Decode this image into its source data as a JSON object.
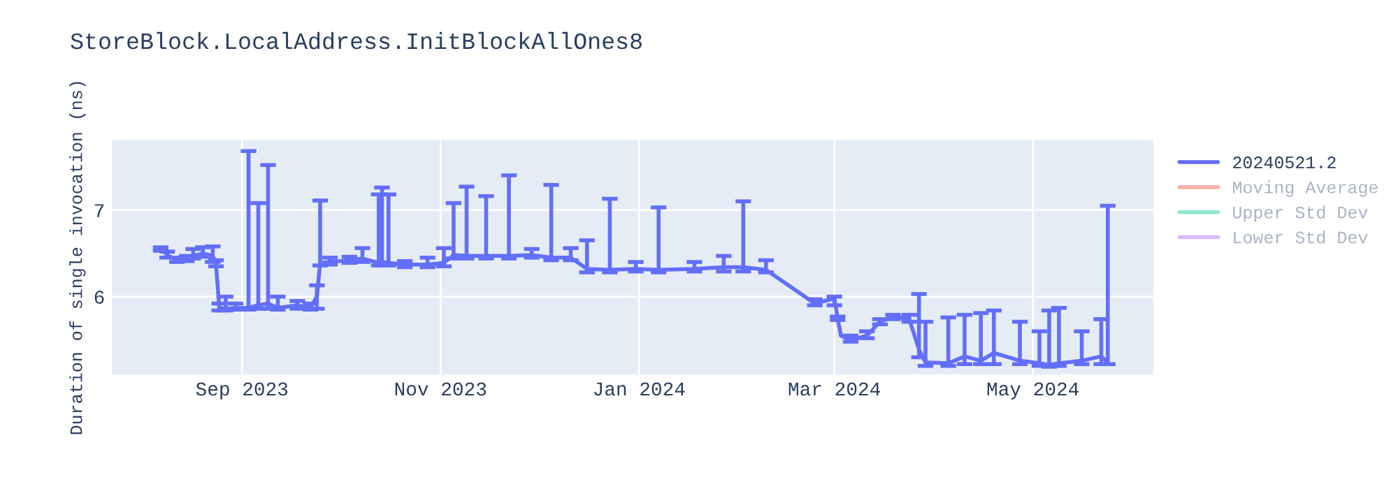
{
  "chart_data": {
    "type": "line",
    "title": "StoreBlock.LocalAddress.InitBlockAllOnes8",
    "ylabel": "Duration of single invocation (ns)",
    "x": [
      "2023-08-07",
      "2023-08-09",
      "2023-08-12",
      "2023-08-15",
      "2023-08-17",
      "2023-08-20",
      "2023-08-23",
      "2023-08-24",
      "2023-08-25",
      "2023-08-27",
      "2023-08-30",
      "2023-09-03",
      "2023-09-06",
      "2023-09-09",
      "2023-09-12",
      "2023-09-18",
      "2023-09-22",
      "2023-09-24",
      "2023-09-25",
      "2023-09-28",
      "2023-10-04",
      "2023-10-08",
      "2023-10-13",
      "2023-10-14",
      "2023-10-16",
      "2023-10-21",
      "2023-10-28",
      "2023-11-02",
      "2023-11-05",
      "2023-11-09",
      "2023-11-15",
      "2023-11-22",
      "2023-11-29",
      "2023-12-05",
      "2023-12-11",
      "2023-12-16",
      "2023-12-23",
      "2023-12-31",
      "2024-01-07",
      "2024-01-18",
      "2024-01-27",
      "2024-02-02",
      "2024-02-09",
      "2024-02-24",
      "2024-03-01",
      "2024-03-02",
      "2024-03-03",
      "2024-03-06",
      "2024-03-11",
      "2024-03-15",
      "2024-03-19",
      "2024-03-24",
      "2024-03-27",
      "2024-03-29",
      "2024-04-05",
      "2024-04-10",
      "2024-04-15",
      "2024-04-19",
      "2024-04-27",
      "2024-05-03",
      "2024-05-06",
      "2024-05-09",
      "2024-05-16",
      "2024-05-22",
      "2024-05-24"
    ],
    "series": [
      {
        "name": "20240521.2",
        "color": "#636efa",
        "values": [
          6.56,
          6.48,
          6.42,
          6.44,
          6.47,
          6.5,
          6.47,
          6.39,
          5.87,
          5.86,
          5.87,
          5.87,
          5.9,
          5.92,
          5.87,
          5.9,
          5.87,
          6.0,
          6.39,
          6.4,
          6.42,
          6.44,
          6.39,
          6.4,
          6.39,
          6.37,
          6.37,
          6.39,
          6.48,
          6.47,
          6.47,
          6.47,
          6.48,
          6.45,
          6.45,
          6.32,
          6.31,
          6.32,
          6.31,
          6.32,
          6.34,
          6.34,
          6.31,
          5.92,
          5.98,
          5.75,
          5.55,
          5.5,
          5.55,
          5.71,
          5.77,
          5.74,
          5.39,
          5.24,
          5.23,
          5.31,
          5.26,
          5.35,
          5.26,
          5.23,
          5.21,
          5.23,
          5.26,
          5.31,
          5.24
        ],
        "errors": [
          [
            6.53,
            6.57
          ],
          [
            6.45,
            6.52
          ],
          [
            6.4,
            6.45
          ],
          [
            6.41,
            6.47
          ],
          [
            6.44,
            6.55
          ],
          [
            6.46,
            6.57
          ],
          [
            6.4,
            6.58
          ],
          [
            6.35,
            6.42
          ],
          [
            5.84,
            5.92
          ],
          [
            5.84,
            6.0
          ],
          [
            5.85,
            5.92
          ],
          [
            5.85,
            7.68
          ],
          [
            5.86,
            7.08
          ],
          [
            5.86,
            7.52
          ],
          [
            5.85,
            6.0
          ],
          [
            5.86,
            5.95
          ],
          [
            5.85,
            5.92
          ],
          [
            5.86,
            6.13
          ],
          [
            6.36,
            7.11
          ],
          [
            6.37,
            6.45
          ],
          [
            6.39,
            6.46
          ],
          [
            6.4,
            6.56
          ],
          [
            6.36,
            7.18
          ],
          [
            6.36,
            7.26
          ],
          [
            6.36,
            7.18
          ],
          [
            6.34,
            6.41
          ],
          [
            6.34,
            6.45
          ],
          [
            6.35,
            6.56
          ],
          [
            6.44,
            7.08
          ],
          [
            6.44,
            7.27
          ],
          [
            6.44,
            7.16
          ],
          [
            6.44,
            7.4
          ],
          [
            6.45,
            6.55
          ],
          [
            6.42,
            7.29
          ],
          [
            6.42,
            6.56
          ],
          [
            6.28,
            6.65
          ],
          [
            6.28,
            7.13
          ],
          [
            6.29,
            6.4
          ],
          [
            6.28,
            7.03
          ],
          [
            6.29,
            6.4
          ],
          [
            6.29,
            6.47
          ],
          [
            6.29,
            7.1
          ],
          [
            6.28,
            6.42
          ],
          [
            5.9,
            5.97
          ],
          [
            5.9,
            6.0
          ],
          [
            5.73,
            5.77
          ],
          null,
          [
            5.48,
            5.55
          ],
          [
            5.52,
            5.6
          ],
          [
            5.68,
            5.74
          ],
          [
            5.74,
            5.79
          ],
          [
            5.71,
            5.79
          ],
          [
            5.3,
            6.03
          ],
          [
            5.2,
            5.71
          ],
          [
            5.2,
            5.76
          ],
          [
            5.22,
            5.79
          ],
          [
            5.22,
            5.81
          ],
          [
            5.22,
            5.84
          ],
          [
            5.22,
            5.71
          ],
          [
            5.2,
            5.6
          ],
          [
            5.19,
            5.84
          ],
          [
            5.2,
            5.87
          ],
          [
            5.22,
            5.6
          ],
          [
            5.22,
            5.74
          ],
          [
            5.22,
            7.05
          ]
        ]
      },
      {
        "name": "Moving Average",
        "color": "#ef553b",
        "values": [
          null,
          null,
          null,
          null,
          null,
          null,
          null,
          null,
          null,
          null,
          null,
          null,
          null,
          null,
          null,
          null,
          null,
          null,
          null,
          null,
          null,
          null,
          null,
          null,
          null,
          null,
          null,
          null,
          null,
          null,
          null,
          null,
          null,
          null,
          null,
          null,
          null,
          null,
          null,
          null,
          null,
          null,
          null,
          null,
          null,
          null,
          null,
          null,
          null,
          null,
          null,
          null,
          null,
          null,
          null,
          null,
          null,
          null,
          null,
          null,
          null,
          null,
          null,
          null,
          null
        ]
      },
      {
        "name": "Upper Std Dev",
        "color": "#00cc96",
        "values": [
          null,
          null,
          null,
          null,
          null,
          null,
          null,
          null,
          null,
          null,
          null,
          null,
          null,
          null,
          null,
          null,
          null,
          null,
          null,
          null,
          null,
          null,
          null,
          null,
          null,
          null,
          null,
          null,
          null,
          null,
          null,
          null,
          null,
          null,
          null,
          null,
          null,
          null,
          null,
          null,
          null,
          null,
          null,
          null,
          null,
          null,
          null,
          null,
          null,
          null,
          null,
          null,
          null,
          null,
          null,
          null,
          null,
          null,
          null,
          null,
          null,
          null,
          null,
          null,
          null
        ]
      },
      {
        "name": "Lower Std Dev",
        "color": "#ab63fa",
        "values": [
          null,
          null,
          null,
          null,
          null,
          null,
          null,
          null,
          null,
          null,
          null,
          null,
          null,
          null,
          null,
          null,
          null,
          null,
          null,
          null,
          null,
          null,
          null,
          null,
          null,
          null,
          null,
          null,
          null,
          null,
          null,
          null,
          null,
          null,
          null,
          null,
          null,
          null,
          null,
          null,
          null,
          null,
          null,
          null,
          null,
          null,
          null,
          null,
          null,
          null,
          null,
          null,
          null,
          null,
          null,
          null,
          null,
          null,
          null,
          null,
          null,
          null,
          null,
          null,
          null
        ]
      }
    ],
    "xlim": [
      "2023-07-23",
      "2024-06-07"
    ],
    "xticks": [
      {
        "value": "2023-09-01",
        "label": "Sep 2023"
      },
      {
        "value": "2023-11-01",
        "label": "Nov 2023"
      },
      {
        "value": "2024-01-01",
        "label": "Jan 2024"
      },
      {
        "value": "2024-03-01",
        "label": "Mar 2024"
      },
      {
        "value": "2024-05-01",
        "label": "May 2024"
      }
    ],
    "ylim": [
      5.1,
      7.81
    ],
    "yticks": [
      6,
      7
    ],
    "grid": true,
    "legend": "top right",
    "marker": "none",
    "line_style": "solid"
  }
}
